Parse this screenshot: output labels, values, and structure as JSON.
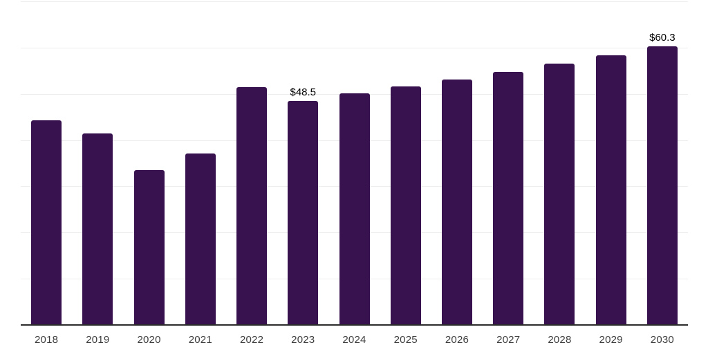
{
  "chart_data": {
    "type": "bar",
    "title": "",
    "xlabel": "",
    "ylabel": "",
    "categories": [
      "2018",
      "2019",
      "2020",
      "2021",
      "2022",
      "2023",
      "2024",
      "2025",
      "2026",
      "2027",
      "2028",
      "2029",
      "2030"
    ],
    "values": [
      44.3,
      41.5,
      33.5,
      37.1,
      51.4,
      48.5,
      50.1,
      51.6,
      53.1,
      54.8,
      56.5,
      58.4,
      60.3
    ],
    "data_labels": {
      "2023": "$48.5",
      "2030": "$60.3"
    },
    "ylim": [
      0,
      70
    ],
    "grid_step": 10,
    "grid": "horizontal",
    "y_axis_labels_visible": false,
    "legend": "none",
    "colors": {
      "bar": "#38124f",
      "gridline": "#ededed",
      "axis_line": "#2b2b2b",
      "tick_label": "#3c3c3c",
      "value_label": "#000000"
    }
  }
}
